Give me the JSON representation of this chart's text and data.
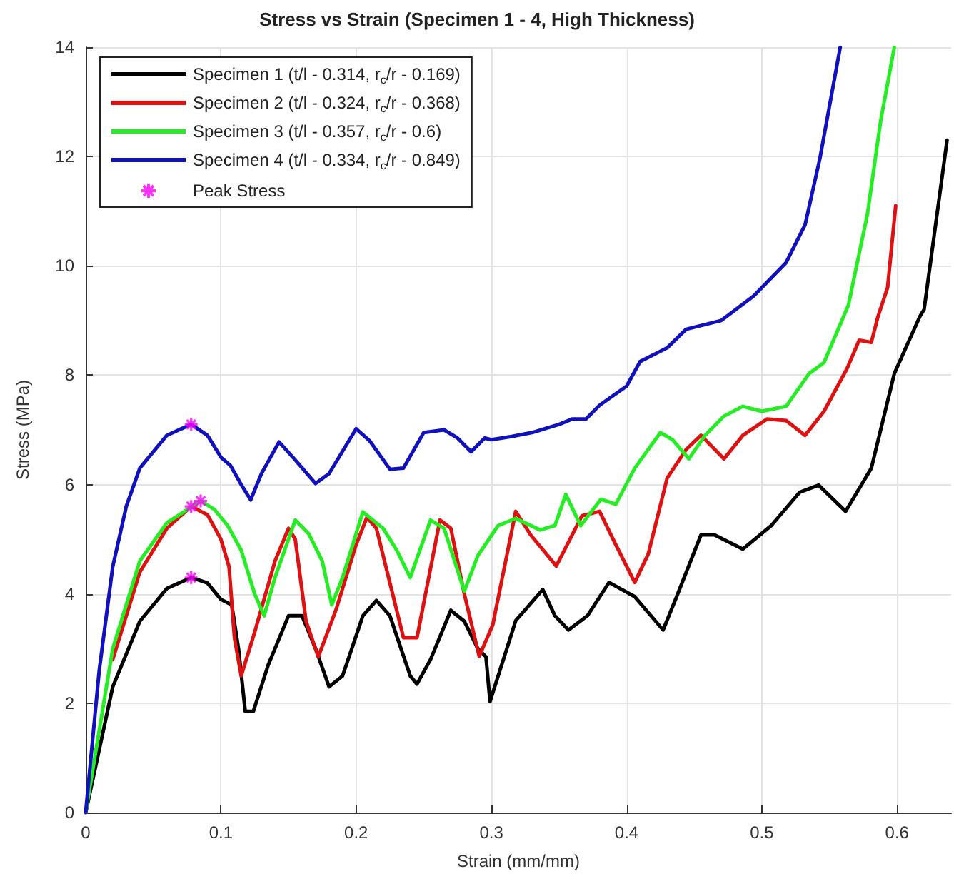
{
  "chart_data": {
    "type": "line",
    "title": "Stress vs Strain (Specimen 1 - 4, High Thickness)",
    "xlabel": "Strain (mm/mm)",
    "ylabel": "Stress (MPa)",
    "xlim": [
      0,
      0.64
    ],
    "xticks": [
      0,
      0.1,
      0.2,
      0.3,
      0.4,
      0.5,
      0.6
    ],
    "ylim": [
      0,
      14
    ],
    "yticks": [
      0,
      2,
      4,
      6,
      8,
      10,
      12,
      14
    ],
    "grid": true,
    "legend": "top left",
    "line_style": "solid",
    "series": [
      {
        "name": "Specimen 1 (t/l - 0.314, r$_{c}$/r - 0.169)",
        "color": "#000000",
        "x": [
          0,
          0.02,
          0.04,
          0.06,
          0.078,
          0.09,
          0.1,
          0.108,
          0.113,
          0.118,
          0.124,
          0.135,
          0.15,
          0.16,
          0.17,
          0.18,
          0.19,
          0.205,
          0.215,
          0.225,
          0.24,
          0.245,
          0.255,
          0.27,
          0.28,
          0.29,
          0.296,
          0.299,
          0.318,
          0.338,
          0.347,
          0.357,
          0.371,
          0.387,
          0.406,
          0.427,
          0.437,
          0.455,
          0.465,
          0.486,
          0.507,
          0.528,
          0.542,
          0.562,
          0.581,
          0.598,
          0.617,
          0.62,
          0.637
        ],
        "values": [
          0,
          2.3,
          3.5,
          4.1,
          4.3,
          4.2,
          3.9,
          3.8,
          3.0,
          1.85,
          1.85,
          2.7,
          3.6,
          3.6,
          3.0,
          2.3,
          2.5,
          3.6,
          3.88,
          3.6,
          2.5,
          2.35,
          2.8,
          3.7,
          3.5,
          3.0,
          2.85,
          2.03,
          3.51,
          4.08,
          3.6,
          3.34,
          3.6,
          4.21,
          3.95,
          3.34,
          3.95,
          5.08,
          5.08,
          4.82,
          5.25,
          5.86,
          5.99,
          5.51,
          6.3,
          8.03,
          9.08,
          9.2,
          12.3
        ]
      },
      {
        "name": "Specimen 2 (t/l - 0.324, r$_{c}$/r - 0.368)",
        "color": "#e01010",
        "x": [
          null,
          0.02,
          0.04,
          0.06,
          0.078,
          0.09,
          0.1,
          0.106,
          0.11,
          0.115,
          0.125,
          0.14,
          0.15,
          0.155,
          0.163,
          0.172,
          0.185,
          0.2,
          0.208,
          0.215,
          0.225,
          0.235,
          0.245,
          0.262,
          0.27,
          0.28,
          0.291,
          0.301,
          0.318,
          0.329,
          0.348,
          0.367,
          0.38,
          0.392,
          0.406,
          0.416,
          0.43,
          0.444,
          0.455,
          0.472,
          0.486,
          0.504,
          0.518,
          0.532,
          0.546,
          0.563,
          0.572,
          0.581,
          0.586,
          0.593,
          0.599
        ],
        "values": [
          null,
          2.8,
          4.4,
          5.2,
          5.6,
          5.45,
          5.0,
          4.5,
          3.2,
          2.5,
          3.3,
          4.6,
          5.2,
          5.0,
          3.5,
          2.85,
          3.7,
          4.9,
          5.4,
          5.2,
          4.2,
          3.2,
          3.2,
          5.35,
          5.2,
          4.0,
          2.86,
          3.43,
          5.51,
          5.08,
          4.51,
          5.43,
          5.51,
          4.9,
          4.21,
          4.73,
          6.12,
          6.64,
          6.9,
          6.47,
          6.9,
          7.2,
          7.17,
          6.9,
          7.34,
          8.12,
          8.64,
          8.6,
          9.08,
          9.6,
          11.1
        ]
      },
      {
        "name": "Specimen 3 (t/l - 0.357, r$_{c}$/r - 0.6)",
        "color": "#22ee22",
        "x": [
          0,
          0.02,
          0.04,
          0.06,
          0.085,
          0.095,
          0.105,
          0.115,
          0.125,
          0.132,
          0.14,
          0.155,
          0.165,
          0.175,
          0.182,
          0.19,
          0.205,
          0.22,
          0.23,
          0.24,
          0.255,
          0.265,
          0.28,
          0.29,
          0.305,
          0.318,
          0.336,
          0.347,
          0.355,
          0.366,
          0.381,
          0.392,
          0.406,
          0.425,
          0.434,
          0.446,
          0.458,
          0.472,
          0.486,
          0.5,
          0.518,
          0.535,
          0.546,
          0.564,
          0.578,
          0.588,
          0.598
        ],
        "values": [
          0,
          3.0,
          4.6,
          5.3,
          5.7,
          5.55,
          5.25,
          4.8,
          4.0,
          3.6,
          4.3,
          5.35,
          5.1,
          4.6,
          3.8,
          4.3,
          5.5,
          5.2,
          4.8,
          4.3,
          5.35,
          5.2,
          4.05,
          4.7,
          5.25,
          5.38,
          5.17,
          5.25,
          5.82,
          5.25,
          5.73,
          5.64,
          6.3,
          6.95,
          6.82,
          6.47,
          6.9,
          7.25,
          7.43,
          7.34,
          7.43,
          8.03,
          8.23,
          9.28,
          10.93,
          12.67,
          14.0
        ]
      },
      {
        "name": "Specimen 4 (t/l - 0.334, r$_{c}$/r - 0.849)",
        "color": "#1010c0",
        "x": [
          0,
          0.01,
          0.02,
          0.03,
          0.04,
          0.06,
          0.078,
          0.09,
          0.1,
          0.107,
          0.115,
          0.122,
          0.13,
          0.143,
          0.155,
          0.17,
          0.18,
          0.2,
          0.21,
          0.225,
          0.235,
          0.25,
          0.265,
          0.275,
          0.285,
          0.295,
          0.3,
          0.315,
          0.33,
          0.35,
          0.36,
          0.37,
          0.38,
          0.4,
          0.41,
          0.43,
          0.444,
          0.47,
          0.494,
          0.518,
          0.532,
          0.543,
          0.558
        ],
        "values": [
          0,
          2.6,
          4.5,
          5.6,
          6.3,
          6.9,
          7.1,
          6.9,
          6.5,
          6.35,
          6.0,
          5.72,
          6.2,
          6.78,
          6.45,
          6.02,
          6.2,
          7.02,
          6.8,
          6.28,
          6.3,
          6.95,
          7.0,
          6.85,
          6.6,
          6.85,
          6.82,
          6.88,
          6.95,
          7.1,
          7.2,
          7.2,
          7.45,
          7.8,
          8.25,
          8.5,
          8.84,
          9.0,
          9.45,
          10.06,
          10.75,
          11.97,
          14.0
        ]
      },
      {
        "name": "Peak Stress",
        "type": "scatter",
        "marker": "cross",
        "color": "#ff00ff",
        "x": [
          0.078,
          0.078,
          0.085,
          0.078
        ],
        "values": [
          4.3,
          5.6,
          5.7,
          7.1
        ]
      }
    ]
  }
}
